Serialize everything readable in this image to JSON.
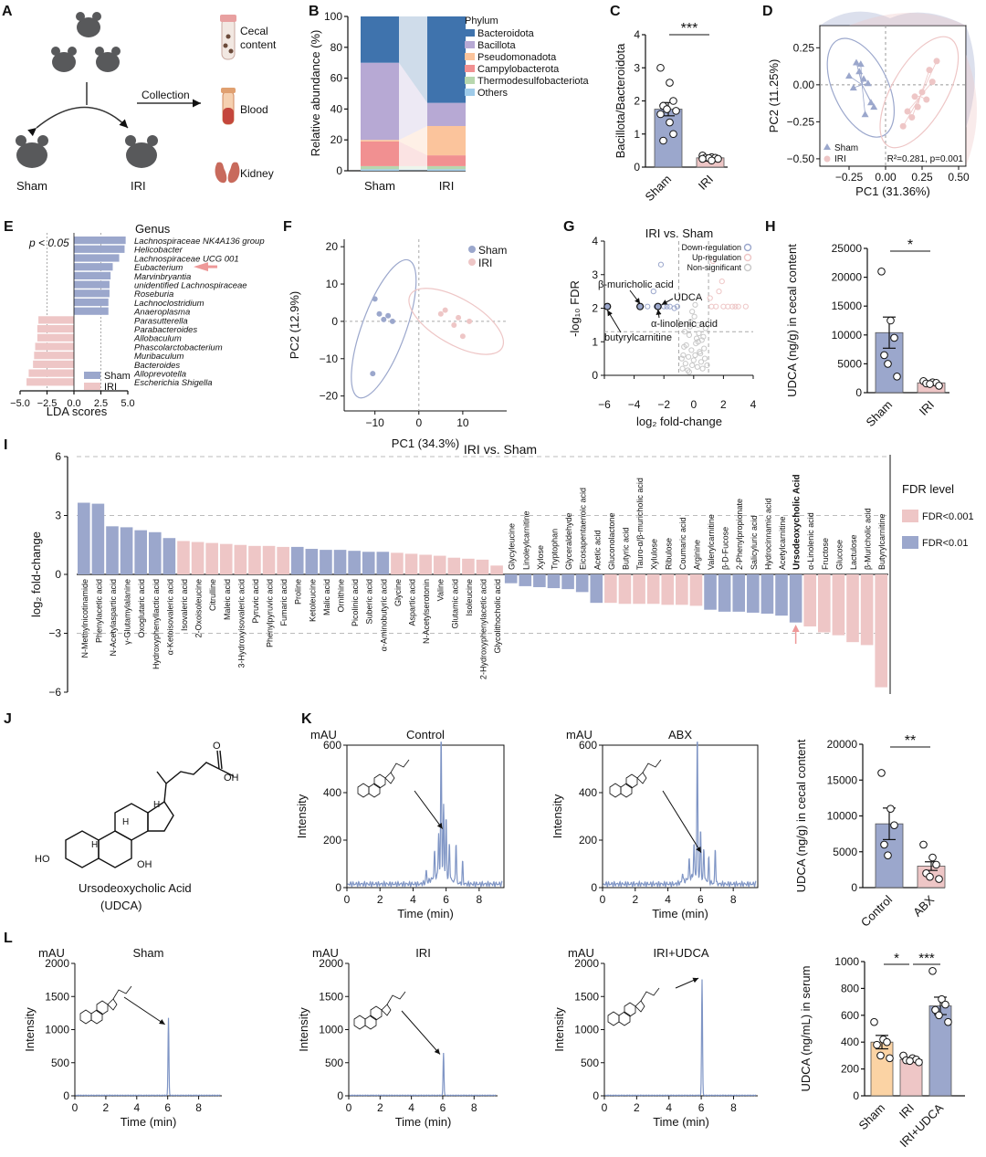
{
  "colors": {
    "blue": "#9ba7cc",
    "pink": "#eec6c6",
    "orange": "#fbd3a4",
    "darkblue": "#3f73ad",
    "purple": "#b7a9d4",
    "peach": "#fbc49c",
    "red": "#f19091",
    "green": "#b7d7ae",
    "sky": "#9fcbe9",
    "trace": "#7f95c5",
    "gray": "#c8c8c8"
  },
  "panelA": {
    "label": "A",
    "collection": "Collection",
    "sham": "Sham",
    "iri": "IRI",
    "cecal_l1": "Cecal",
    "cecal_l2": "content",
    "blood": "Blood",
    "kidney": "Kidney"
  },
  "chart_data": [
    {
      "panel": "B",
      "type": "bar",
      "stacked": true,
      "title": "",
      "ylabel": "Relative abundance (%)",
      "xlabel": "",
      "categories": [
        "Sham",
        "IRI"
      ],
      "ylim": [
        0,
        100
      ],
      "yticks": [
        0,
        20,
        40,
        60,
        80,
        100
      ],
      "legend_title": "Phylum",
      "series": [
        {
          "name": "Others",
          "values": [
            1,
            1
          ]
        },
        {
          "name": "Thermodesulfobacteriota",
          "values": [
            2,
            2
          ]
        },
        {
          "name": "Campylobacterota",
          "values": [
            16,
            7
          ]
        },
        {
          "name": "Pseudomonadota",
          "values": [
            1,
            19
          ]
        },
        {
          "name": "Bacillota",
          "values": [
            50,
            15
          ]
        },
        {
          "name": "Bacteroidota",
          "values": [
            30,
            56
          ]
        }
      ],
      "legend": [
        "Bacteroidota",
        "Bacillota",
        "Pseudomonadota",
        "Campylobacterota",
        "Thermodesulfobacteriota",
        "Others"
      ]
    },
    {
      "panel": "C",
      "type": "bar",
      "ylabel": "Bacillota/Bacteroidota",
      "categories": [
        "Sham",
        "IRI"
      ],
      "values": [
        1.75,
        0.28
      ],
      "errors": [
        0.2,
        0.03
      ],
      "ylim": [
        0,
        4
      ],
      "yticks": [
        0,
        1,
        2,
        3,
        4
      ],
      "points": [
        [
          3.0,
          2.55,
          2.0,
          1.85,
          1.75,
          1.7,
          1.6,
          1.35,
          1.0,
          0.8
        ],
        [
          0.35,
          0.3,
          0.28,
          0.28,
          0.27,
          0.25,
          0.25,
          0.2
        ]
      ],
      "significance": "***"
    },
    {
      "panel": "D",
      "type": "scatter",
      "xlabel": "PC1 (31.36%)",
      "ylabel": "PC2 (11.25%)",
      "xlim": [
        -0.45,
        0.55
      ],
      "ylim": [
        -0.55,
        0.4
      ],
      "xticks": [
        -0.25,
        0,
        0.25,
        0.5
      ],
      "xtick_labels": [
        "−0.25",
        "0.00",
        "0.25",
        "0.50"
      ],
      "yticks": [
        -0.5,
        -0.25,
        0,
        0.25
      ],
      "ytick_labels": [
        "−0.50",
        "−0.25",
        "0.00",
        "0.25"
      ],
      "stat": "R²=0.281, p=0.001",
      "series": [
        {
          "name": "Sham",
          "x": [
            -0.25,
            -0.2,
            -0.18,
            -0.15,
            -0.22,
            -0.12,
            -0.1,
            -0.14,
            -0.17,
            -0.08
          ],
          "y": [
            0.06,
            0.15,
            0.09,
            0.04,
            -0.02,
            0.01,
            -0.12,
            -0.2,
            0.14,
            -0.15
          ]
        },
        {
          "name": "IRI",
          "x": [
            0.12,
            0.18,
            0.22,
            0.28,
            0.25,
            0.32,
            0.3,
            0.15,
            0.35,
            0.2
          ],
          "y": [
            -0.28,
            -0.22,
            -0.15,
            -0.1,
            -0.05,
            0.02,
            0.1,
            -0.18,
            0.16,
            -0.08
          ]
        }
      ]
    },
    {
      "panel": "E",
      "type": "bar",
      "orientation": "horizontal",
      "xlabel": "LDA scores",
      "legend_title": "Genus",
      "note": "p < 0.05",
      "xlim": [
        -5,
        5
      ],
      "xticks": [
        -5,
        -2.5,
        0,
        2.5,
        5
      ],
      "xtick_labels": [
        "−5.0",
        "−2.5",
        "0.0",
        "2.5",
        "5.0"
      ],
      "categories": [
        "Lachnospiraceae NK4A136 group",
        "Helicobacter",
        "Lachnospiraceae UCG 001",
        "Eubacterium",
        "Marvinbryantia",
        "unidentified Lachnospiraceae",
        "Roseburia",
        "Lachnoclostridium",
        "Anaeroplasma",
        "Parasutterella",
        "Parabacteroides",
        "Allobaculum",
        "Phascolarctobacterium",
        "Muribaculum",
        "Bacteroides",
        "Alloprevotella",
        "Escherichia Shigella"
      ],
      "values": [
        4.8,
        4.7,
        4.2,
        3.6,
        3.4,
        3.3,
        3.3,
        3.2,
        3.2,
        -3.3,
        -3.4,
        -3.4,
        -3.6,
        -3.7,
        -3.8,
        -4.2,
        -4.4
      ],
      "legend": [
        "Sham",
        "IRI"
      ],
      "highlight": "Eubacterium"
    },
    {
      "panel": "F",
      "type": "scatter",
      "xlabel": "PC1 (34.3%)",
      "ylabel": "PC2 (12.9%)",
      "xlim": [
        -17,
        20
      ],
      "ylim": [
        -24,
        22
      ],
      "xticks": [
        -10,
        0,
        10
      ],
      "yticks": [
        -20,
        -10,
        0,
        10,
        20
      ],
      "series": [
        {
          "name": "Sham",
          "x": [
            -10,
            -9,
            -8,
            -7,
            -6,
            -10.5
          ],
          "y": [
            6,
            2,
            0.5,
            1.5,
            0,
            -14
          ]
        },
        {
          "name": "IRI",
          "x": [
            5,
            6,
            8,
            9,
            10,
            11.5
          ],
          "y": [
            2,
            3,
            -1,
            1,
            -4,
            0
          ]
        }
      ]
    },
    {
      "panel": "G",
      "type": "scatter",
      "title": "IRI vs. Sham",
      "xlabel": "log₂ fold-change",
      "ylabel": "-log₁₀ FDR",
      "xlim": [
        -6,
        4
      ],
      "ylim": [
        0,
        4
      ],
      "xticks": [
        -6,
        -4,
        -2,
        0,
        2,
        4
      ],
      "yticks": [
        0,
        1,
        2,
        3,
        4
      ],
      "legend": [
        "Down-regulation",
        "Up-regulation",
        "Non-significant"
      ],
      "annotations": [
        "β-muricholic acid",
        "UDCA",
        "α-linolenic acid",
        "butyrylcarnitine"
      ],
      "series": [
        {
          "name": "Down-regulation",
          "x": [
            -5.8,
            -3.6,
            -2.4,
            -2.7,
            -2.0,
            -1.6,
            -1.3,
            -3.1,
            -2.2,
            -1.8,
            -2.5,
            -1.1
          ],
          "y": [
            2.05,
            2.05,
            2.05,
            2.5,
            2.05,
            2.05,
            2.0,
            2.05,
            3.3,
            2.05,
            2.05,
            2.05
          ]
        },
        {
          "name": "Up-regulation",
          "x": [
            1.2,
            1.5,
            1.7,
            2.0,
            2.3,
            2.6,
            3.5,
            1.3,
            1.9,
            2.8,
            1.1,
            3.0
          ],
          "y": [
            2.05,
            2.05,
            2.5,
            2.05,
            2.05,
            2.05,
            2.05,
            3.4,
            2.8,
            2.05,
            2.3,
            2.05
          ]
        },
        {
          "name": "Non-significant",
          "x": [
            -0.8,
            -0.5,
            -0.3,
            -0.1,
            0.1,
            0.3,
            0.5,
            0.7,
            -0.6,
            -0.2,
            0.2,
            0.4,
            0.6,
            -0.4,
            0,
            0.8,
            -0.7,
            0.9,
            0.15,
            -0.15,
            0.35,
            -0.35,
            0.55,
            -0.55,
            0.05,
            0.25,
            -0.25,
            0.45,
            0.65,
            -0.65,
            0.75,
            -0.75,
            0.1,
            -0.1,
            0.3,
            -0.3
          ],
          "y": [
            0.5,
            0.9,
            1.2,
            0.3,
            0.6,
            1.0,
            0.4,
            0.8,
            1.3,
            1.6,
            1.1,
            0.7,
            0.2,
            0.15,
            0.45,
            1.4,
            0.6,
            0.3,
            0.95,
            0.75,
            1.25,
            0.55,
            1.05,
            0.35,
            1.75,
            0.25,
            1.45,
            0.65,
            1.15,
            0.85,
            0.5,
            0.2,
            2.1,
            1.9,
            1.5,
            0.1
          ]
        }
      ]
    },
    {
      "panel": "H",
      "type": "bar",
      "ylabel": "UDCA (ng/g) in cecal content",
      "categories": [
        "Sham",
        "IRI"
      ],
      "values": [
        10400,
        1700
      ],
      "errors": [
        2700,
        300
      ],
      "ylim": [
        0,
        25000
      ],
      "yticks": [
        0,
        5000,
        10000,
        15000,
        20000,
        25000
      ],
      "points": [
        [
          21000,
          12500,
          9500,
          6500,
          5000,
          2800
        ],
        [
          2000,
          1800,
          1700,
          1600,
          1500,
          1200
        ]
      ],
      "significance": "*"
    },
    {
      "panel": "I",
      "type": "bar",
      "title": "IRI vs. Sham",
      "ylabel": "log₂ fold-change",
      "ylim": [
        -6,
        6
      ],
      "yticks": [
        -6,
        -3,
        0,
        3,
        6
      ],
      "legend_title": "FDR level",
      "legend": [
        "FDR<0.001",
        "FDR<0.01"
      ],
      "highlight": "Ursodeoxycholic Acid",
      "categories": [
        "N-Methylnicotinamide",
        "Phenylacetic acid",
        "N-Acetylaspartic acid",
        "γ-Glutamylalanine",
        "Oxoglutaric acid",
        "Hydroxyphenyllactic acid",
        "α-Ketoisovaleric acid",
        "Isovaleric acid",
        "2-Oxoisoleucine",
        "Citrulline",
        "Maleic acid",
        "3-Hydroxyisovaleric acid",
        "Pyruvic acid",
        "Phenylpyruvic acid",
        "Fumaric acid",
        "Proline",
        "Ketoleucine",
        "Malic acid",
        "Ornithine",
        "Picolinic acid",
        "Suberic acid",
        "α-Aminobutyric acid",
        "Glycine",
        "Aspartic acid",
        "N-Acetylserotonin",
        "Valine",
        "Glutamic acid",
        "Isoleucine",
        "2-Hydroxyphenylacetic acid",
        "Glycolithocholic acid",
        "Glycyleucine",
        "Linoleylcarnitine",
        "Xylose",
        "Tryptophan",
        "Glyceraldehyde",
        "Eicosapentaenoic acid",
        "Acetic acid",
        "Gluconolactone",
        "Butyric acid",
        "Tauro-α/β-muricholic acid",
        "Xylulose",
        "Ribulose",
        "Coumaric acid",
        "Arginine",
        "Valerylcarnitine",
        "β-D-Fucose",
        "2-Phenylpropionate",
        "Salicyluric acid",
        "Hydrocinnamic acid",
        "Acetylcarnitine",
        "Ursodeoxycholic Acid",
        "α-Linolenic acid",
        "Fructose",
        "Glucose",
        "Lactulose",
        "β-Muricholic acid",
        "Butyrylcarnitine"
      ],
      "values": [
        3.65,
        3.6,
        2.45,
        2.4,
        2.25,
        2.15,
        1.85,
        1.7,
        1.65,
        1.6,
        1.55,
        1.5,
        1.45,
        1.45,
        1.4,
        1.4,
        1.3,
        1.25,
        1.25,
        1.2,
        1.15,
        1.15,
        1.1,
        1.05,
        1.0,
        0.95,
        0.85,
        0.8,
        0.75,
        0.45,
        -0.45,
        -0.6,
        -0.65,
        -0.7,
        -0.75,
        -0.9,
        -1.45,
        -1.45,
        -1.5,
        -1.5,
        -1.5,
        -1.55,
        -1.55,
        -1.6,
        -1.8,
        -1.9,
        -1.9,
        -1.95,
        -2.0,
        -2.1,
        -2.45,
        -2.65,
        -2.95,
        -3.1,
        -3.45,
        -3.6,
        -5.75
      ],
      "fdr_level": [
        "b",
        "b",
        "b",
        "b",
        "b",
        "b",
        "b",
        "p",
        "p",
        "p",
        "p",
        "p",
        "p",
        "p",
        "p",
        "b",
        "b",
        "b",
        "b",
        "b",
        "b",
        "b",
        "p",
        "p",
        "p",
        "p",
        "p",
        "p",
        "p",
        "p",
        "b",
        "b",
        "b",
        "b",
        "b",
        "b",
        "b",
        "p",
        "p",
        "p",
        "p",
        "p",
        "p",
        "p",
        "b",
        "b",
        "b",
        "b",
        "b",
        "b",
        "b",
        "p",
        "p",
        "p",
        "p",
        "p",
        "p"
      ]
    },
    {
      "panel": "K",
      "type": "line",
      "title": "Control",
      "xlabel": "Time (min)",
      "ylabel": "Intensity",
      "unit": "mAU",
      "xlim": [
        0,
        9.5
      ],
      "ylim": [
        0,
        600
      ],
      "xticks": [
        0,
        2,
        4,
        6,
        8
      ],
      "yticks": [
        0,
        200,
        400,
        600
      ],
      "peaks": [
        [
          4.8,
          50
        ],
        [
          5.3,
          110
        ],
        [
          5.55,
          180
        ],
        [
          5.7,
          620
        ],
        [
          5.85,
          300
        ],
        [
          6.0,
          250
        ],
        [
          6.2,
          150
        ],
        [
          6.6,
          170
        ],
        [
          7.0,
          90
        ]
      ]
    },
    {
      "panel": "K",
      "type": "line",
      "title": "ABX",
      "xlabel": "Time (min)",
      "ylabel": "Intensity",
      "unit": "mAU",
      "xlim": [
        0,
        9.5
      ],
      "ylim": [
        0,
        600
      ],
      "xticks": [
        0,
        2,
        4,
        6,
        8
      ],
      "yticks": [
        0,
        200,
        400,
        600
      ],
      "peaks": [
        [
          4.9,
          40
        ],
        [
          5.3,
          80
        ],
        [
          5.6,
          140
        ],
        [
          5.8,
          600
        ],
        [
          6.0,
          200
        ],
        [
          6.2,
          130
        ],
        [
          6.5,
          100
        ],
        [
          6.9,
          150
        ]
      ]
    },
    {
      "panel": "K",
      "type": "bar",
      "ylabel": "UDCA (ng/g) in cecal content",
      "categories": [
        "Control",
        "ABX"
      ],
      "values": [
        8900,
        3000
      ],
      "errors": [
        2200,
        600
      ],
      "ylim": [
        0,
        20000
      ],
      "yticks": [
        0,
        5000,
        10000,
        15000,
        20000
      ],
      "points": [
        [
          16000,
          11000,
          8700,
          6000,
          4500
        ],
        [
          6000,
          4200,
          3200,
          2000,
          1500,
          1200
        ]
      ],
      "significance": "**"
    },
    {
      "panel": "L",
      "type": "line",
      "title": "Sham",
      "xlabel": "Time (min)",
      "ylabel": "Intensity",
      "unit": "mAU",
      "xlim": [
        0,
        9.5
      ],
      "ylim": [
        0,
        2000
      ],
      "xticks": [
        0,
        2,
        4,
        6,
        8
      ],
      "yticks": [
        0,
        500,
        1000,
        1500,
        2000
      ],
      "peaks": [
        [
          6.05,
          1170
        ]
      ]
    },
    {
      "panel": "L",
      "type": "line",
      "title": "IRI",
      "xlabel": "Time (min)",
      "ylabel": "Intensity",
      "unit": "mAU",
      "xlim": [
        0,
        9.5
      ],
      "ylim": [
        0,
        2000
      ],
      "xticks": [
        0,
        2,
        4,
        6,
        8
      ],
      "yticks": [
        0,
        500,
        1000,
        1500,
        2000
      ],
      "peaks": [
        [
          6.05,
          640
        ]
      ]
    },
    {
      "panel": "L",
      "type": "line",
      "title": "IRI+UDCA",
      "xlabel": "Time (min)",
      "ylabel": "Intensity",
      "unit": "mAU",
      "xlim": [
        0,
        9.5
      ],
      "ylim": [
        0,
        2000
      ],
      "xticks": [
        0,
        2,
        4,
        6,
        8
      ],
      "yticks": [
        0,
        500,
        1000,
        1500,
        2000
      ],
      "peaks": [
        [
          6.05,
          1750
        ]
      ]
    },
    {
      "panel": "L",
      "type": "bar",
      "ylabel": "UDCA (ng/mL) in serum",
      "categories": [
        "Sham",
        "IRI",
        "IRI+UDCA"
      ],
      "values": [
        400,
        270,
        670
      ],
      "errors": [
        50,
        15,
        65
      ],
      "ylim": [
        0,
        1000
      ],
      "yticks": [
        0,
        200,
        400,
        600,
        800,
        1000
      ],
      "points": [
        [
          550,
          420,
          400,
          380,
          300,
          280
        ],
        [
          300,
          280,
          270,
          265,
          260,
          250
        ],
        [
          930,
          720,
          680,
          640,
          600,
          550
        ]
      ],
      "significance": [
        "*",
        "***"
      ]
    }
  ],
  "panelJ": {
    "label": "J",
    "name": "Ursodeoxycholic Acid",
    "abbr": "(UDCA)",
    "oh": "OH",
    "ho": "HO",
    "h": "H",
    "o": "O"
  },
  "labels": {
    "B": "B",
    "C": "C",
    "D": "D",
    "E": "E",
    "F": "F",
    "G": "G",
    "H": "H",
    "I": "I",
    "K": "K",
    "L": "L"
  }
}
